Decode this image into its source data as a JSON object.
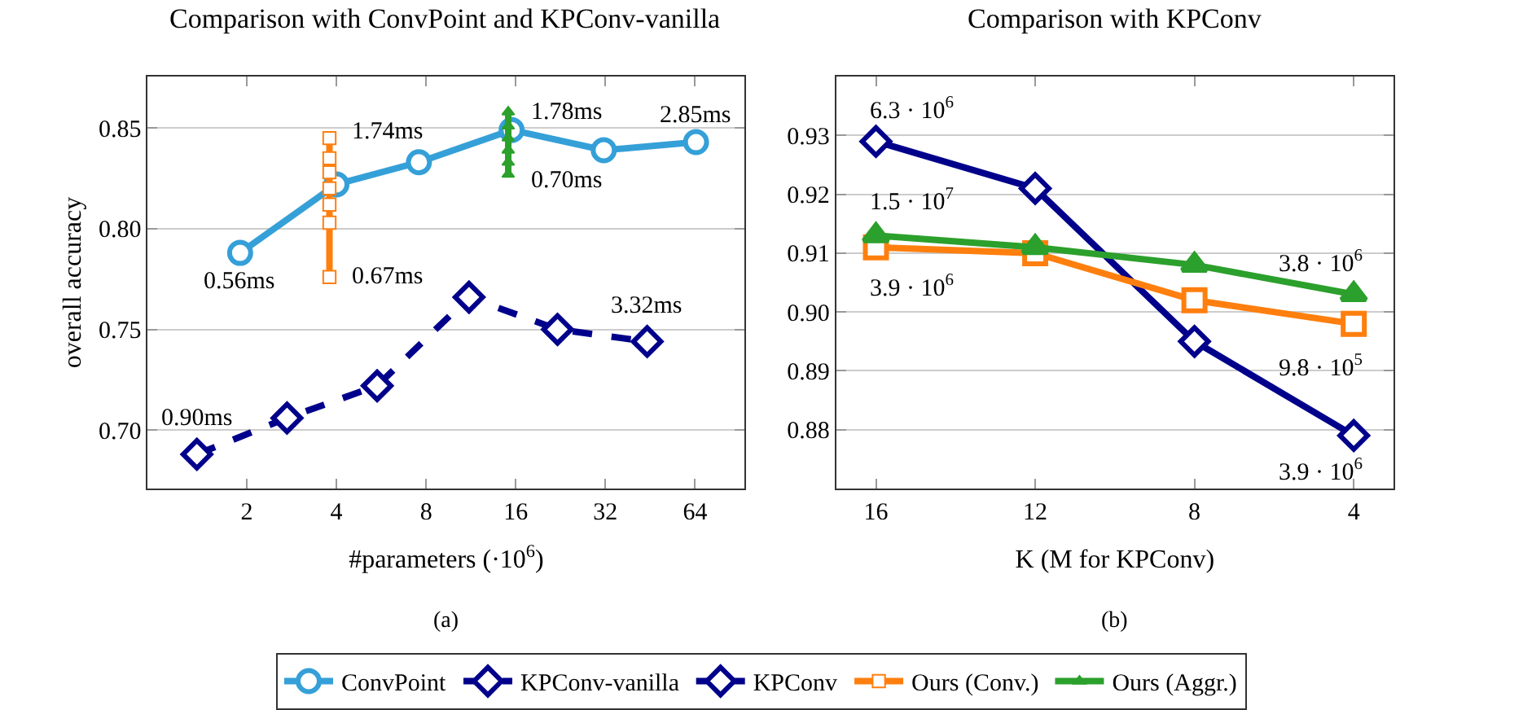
{
  "chart_data": [
    {
      "type": "line",
      "title": "Comparison with ConvPoint and KPConv-vanilla",
      "xlabel": "#parameters (·10$^{6}$)",
      "ylabel": "overall accuracy",
      "log": "x",
      "xlim": [
        0.93,
        94
      ],
      "xticks": [
        2,
        4,
        8,
        16,
        32,
        64
      ],
      "ylim": [
        0.671,
        0.8755
      ],
      "yticks": [
        {
          "value": 0.7,
          "label": "0.70"
        },
        0.75,
        {
          "value": 0.8,
          "label": "0.80"
        },
        0.85
      ],
      "grid": "y",
      "legend": "bottom",
      "line_style": "solid",
      "series": [
        {
          "name": "ConvPoint",
          "color": "#35a0d8",
          "marker": "circle",
          "x": [
            1.9,
            4,
            7.57,
            15.5,
            31.6,
            64.5
          ],
          "values": [
            0.788,
            0.822,
            0.833,
            0.849,
            0.839,
            0.843
          ]
        },
        {
          "name": "KPConv-vanilla",
          "color": "#00008b",
          "marker": "diamond",
          "line_style": "dashed",
          "x": [
            1.36,
            2.73,
            5.48,
            11.15,
            22.1,
            44.2
          ],
          "values": [
            0.688,
            0.706,
            0.722,
            0.766,
            0.75,
            0.744
          ]
        },
        {
          "name": "Ours (Conv.)",
          "color": "#ff7f0e",
          "marker": "square",
          "x": [
            3.79,
            3.79,
            3.79,
            3.79,
            3.79,
            3.79,
            3.79
          ],
          "values": [
            0.845,
            0.835,
            0.828,
            0.82,
            0.812,
            0.803,
            0.776
          ]
        },
        {
          "name": "Ours (Aggr.)",
          "color": "#2ca02c",
          "marker": "triangle",
          "x": [
            15.1,
            15.1,
            15.1,
            15.1,
            15.1,
            15.1
          ],
          "values": [
            0.858,
            0.851,
            0.845,
            0.839,
            0.833,
            0.827
          ]
        }
      ],
      "annotations": [
        {
          "text": "0.56ms",
          "x": 1.9,
          "y": 0.788
        },
        {
          "text": "2.85ms",
          "x": 64.5,
          "y": 0.843
        },
        {
          "text": "1.74ms",
          "x": 3.79,
          "y": 0.845
        },
        {
          "text": "0.67ms",
          "x": 3.79,
          "y": 0.776
        },
        {
          "text": "1.78ms",
          "x": 15.1,
          "y": 0.858
        },
        {
          "text": "0.70ms",
          "x": 15.1,
          "y": 0.827
        },
        {
          "text": "0.90ms",
          "x": 1.36,
          "y": 0.688
        },
        {
          "text": "3.32ms",
          "x": 44.2,
          "y": 0.744
        },
        "(a)"
      ]
    },
    {
      "type": "line",
      "title": "Comparison with KPConv",
      "xlabel": "K (M for KPConv)",
      "xlim": [
        17,
        3
      ],
      "xticks": [
        16,
        12,
        8,
        4
      ],
      "ylim": [
        0.87,
        0.94
      ],
      "yticks": [
        0.88,
        0.89,
        {
          "value": 0.9,
          "label": "0.90"
        },
        0.91,
        0.92,
        0.93
      ],
      "grid": "y",
      "legend": "bottom",
      "line_style": "solid",
      "series": [
        {
          "name": "KPConv",
          "color": "#00008b",
          "marker": "diamond",
          "x": [
            16,
            12,
            8,
            4
          ],
          "values": [
            0.929,
            0.921,
            0.895,
            0.879
          ]
        },
        {
          "name": "Ours (Conv.)",
          "color": "#ff7f0e",
          "marker": "square",
          "x": [
            16,
            12,
            8,
            4
          ],
          "values": [
            0.911,
            0.91,
            0.902,
            0.898
          ]
        },
        {
          "name": "Ours (Aggr.)",
          "color": "#2ca02c",
          "marker": "triangle",
          "x": [
            16,
            12,
            8,
            4
          ],
          "values": [
            0.913,
            0.911,
            0.908,
            0.903
          ]
        }
      ],
      "annotations": [
        {
          "text": "6.3 · 10$^{6}$",
          "x": 16,
          "y": 0.929
        },
        {
          "text": "1.5 · 10$^{7}$",
          "x": 16,
          "y": 0.913
        },
        {
          "text": "3.9 · 10$^{6}$",
          "x": 16,
          "y": 0.911
        },
        {
          "text": "3.8 · 10$^{6}$",
          "x": 4,
          "y": 0.903
        },
        {
          "text": "9.8 · 10$^{5}$",
          "x": 4,
          "y": 0.898
        },
        {
          "text": "3.9 · 10$^{6}$",
          "x": 4,
          "y": 0.879
        },
        "(b)"
      ]
    }
  ]
}
